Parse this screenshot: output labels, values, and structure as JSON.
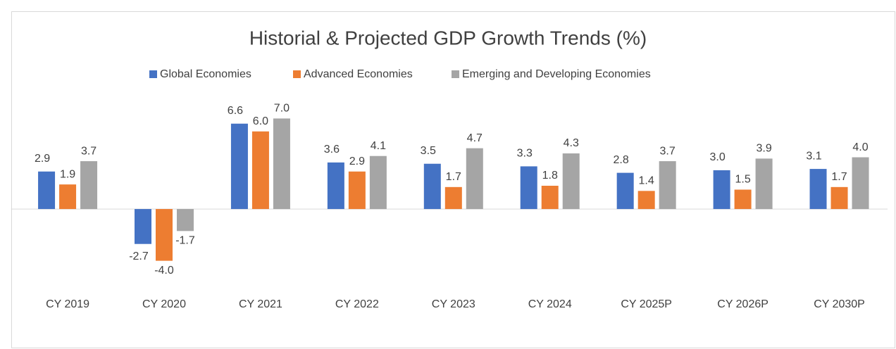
{
  "chart_data": {
    "type": "bar",
    "title": "Historial & Projected GDP Growth Trends (%)",
    "categories": [
      "CY 2019",
      "CY 2020",
      "CY 2021",
      "CY 2022",
      "CY 2023",
      "CY 2024",
      "CY 2025P",
      "CY 2026P",
      "CY 2030P"
    ],
    "series": [
      {
        "name": "Global Economies",
        "color": "#4472c4",
        "values": [
          2.9,
          -2.7,
          6.6,
          3.6,
          3.5,
          3.3,
          2.8,
          3.0,
          3.1
        ],
        "value_labels": [
          "2.9",
          "-2.7",
          "6.6",
          "3.6",
          "3.5",
          "3.3",
          "2.8",
          "3.0",
          "3.1"
        ]
      },
      {
        "name": "Advanced Economies",
        "color": "#ed7d31",
        "values": [
          1.9,
          -4.0,
          6.0,
          2.9,
          1.7,
          1.8,
          1.4,
          1.5,
          1.7
        ],
        "value_labels": [
          "1.9",
          "-4.0",
          "6.0",
          "2.9",
          "1.7",
          "1.8",
          "1.4",
          "1.5",
          "1.7"
        ]
      },
      {
        "name": "Emerging and Developing Economies",
        "color": "#a5a5a5",
        "values": [
          3.7,
          -1.7,
          7.0,
          4.1,
          4.7,
          4.3,
          3.7,
          3.9,
          4.0
        ],
        "value_labels": [
          "3.7",
          "-1.7",
          "7.0",
          "4.1",
          "4.7",
          "4.3",
          "3.7",
          "3.9",
          "4.0"
        ]
      }
    ],
    "ylim": [
      -5,
      8
    ],
    "legend": "top"
  }
}
